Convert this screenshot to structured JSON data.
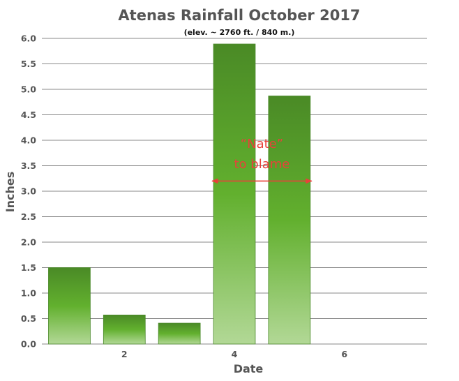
{
  "chart_data": {
    "type": "bar",
    "title": "Atenas Rainfall October 2017",
    "subtitle": "(elev. ~ 2760 ft. / 840 m.)",
    "xlabel": "Date",
    "ylabel": "Inches",
    "x": [
      1,
      2,
      3,
      4,
      5
    ],
    "values": [
      1.5,
      0.57,
      0.41,
      5.89,
      4.87
    ],
    "xlim": [
      0.5,
      7.5
    ],
    "x_ticks": [
      "2",
      "4",
      "6"
    ],
    "x_tick_values": [
      2,
      4,
      6
    ],
    "ylim": [
      0,
      6
    ],
    "y_ticks": [
      "0.0",
      "0.5",
      "1.0",
      "1.5",
      "2.0",
      "2.5",
      "3.0",
      "3.5",
      "4.0",
      "4.5",
      "5.0",
      "5.5",
      "6.0"
    ],
    "grid": true,
    "bar_color_top": "#4a8a26",
    "bar_color_mid": "#62b02e",
    "bar_color_bottom": "#b2d896",
    "annotation": {
      "lines": [
        "“Nate”",
        "to blame"
      ],
      "color": "#e8413a",
      "x_range": [
        4,
        5
      ],
      "y": 3.2,
      "text_y": [
        3.85,
        3.45
      ]
    }
  }
}
